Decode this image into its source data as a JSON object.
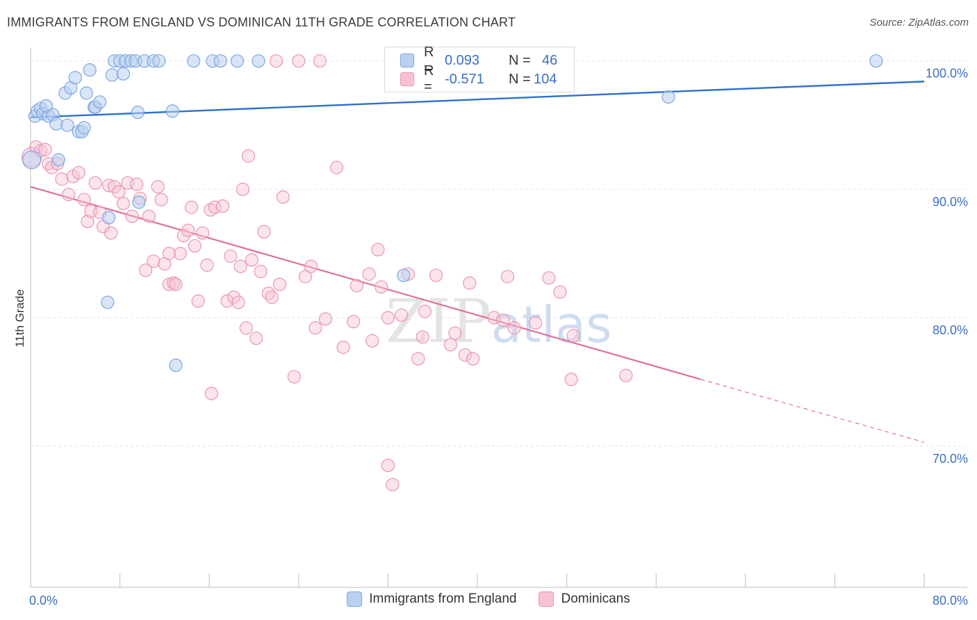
{
  "title": "IMMIGRANTS FROM ENGLAND VS DOMINICAN 11TH GRADE CORRELATION CHART",
  "source": "Source: ZipAtlas.com",
  "watermark": "ZIPatlas",
  "legend": {
    "rows": [
      {
        "r_label": "R =",
        "r_value": "0.093",
        "n_label": "N =",
        "n_value": "46"
      },
      {
        "r_label": "R =",
        "r_value": "-0.571",
        "n_label": "N =",
        "n_value": "104"
      }
    ]
  },
  "colors": {
    "england": "#7aa7e0",
    "england_fill": "#b9d0f0",
    "england_line": "#2e6fcc",
    "dominican": "#e896b2",
    "dominican_fill": "#f7c3d4",
    "dominican_line": "#e0709a",
    "axis_label": "#3a6fc4"
  },
  "chart_data": {
    "type": "scatter",
    "title": "IMMIGRANTS FROM ENGLAND VS DOMINICAN 11TH GRADE CORRELATION CHART",
    "ylabel": "11th Grade",
    "xlabel": "",
    "xlim": [
      0,
      80
    ],
    "ylim": [
      59,
      101.5
    ],
    "x_tick_labels": [
      "0.0%",
      "80.0%"
    ],
    "y_ticks": [
      100,
      90,
      80,
      70
    ],
    "y_tick_labels": [
      "100.0%",
      "90.0%",
      "80.0%",
      "70.0%"
    ],
    "grid": true,
    "legend_position": "bottom",
    "series": [
      {
        "name": "Immigrants from England",
        "trend": {
          "x0": 0,
          "y0": 95.6,
          "x1": 80,
          "y1": 98.4
        },
        "points": [
          [
            0.1,
            92.3
          ],
          [
            0.4,
            95.7
          ],
          [
            0.6,
            96.1
          ],
          [
            0.9,
            96.3
          ],
          [
            1.1,
            95.9
          ],
          [
            1.6,
            95.7
          ],
          [
            1.4,
            96.5
          ],
          [
            2.0,
            95.8
          ],
          [
            2.3,
            95.1
          ],
          [
            3.3,
            95.0
          ],
          [
            3.1,
            97.5
          ],
          [
            3.6,
            97.9
          ],
          [
            4.0,
            98.7
          ],
          [
            4.3,
            94.5
          ],
          [
            4.6,
            94.5
          ],
          [
            4.8,
            94.8
          ],
          [
            5.0,
            97.5
          ],
          [
            5.3,
            99.3
          ],
          [
            5.7,
            96.4
          ],
          [
            5.8,
            96.4
          ],
          [
            6.2,
            96.8
          ],
          [
            7.3,
            98.9
          ],
          [
            7.5,
            100
          ],
          [
            8.0,
            100
          ],
          [
            8.3,
            99.0
          ],
          [
            8.5,
            100
          ],
          [
            9.0,
            100
          ],
          [
            9.4,
            100
          ],
          [
            9.6,
            96.0
          ],
          [
            10.2,
            100
          ],
          [
            11.0,
            100
          ],
          [
            11.5,
            100
          ],
          [
            12.7,
            96.1
          ],
          [
            14.6,
            100
          ],
          [
            16.3,
            100
          ],
          [
            17.0,
            100
          ],
          [
            18.5,
            100
          ],
          [
            20.4,
            100
          ],
          [
            2.5,
            92.3
          ],
          [
            6.9,
            81.2
          ],
          [
            9.7,
            89.0
          ],
          [
            13.0,
            76.3
          ],
          [
            33.4,
            83.3
          ],
          [
            57.1,
            97.2
          ],
          [
            75.7,
            100
          ],
          [
            7.0,
            87.8
          ]
        ]
      },
      {
        "name": "Dominicans",
        "trend": {
          "x0": 0,
          "y0": 90.2,
          "x1": 60,
          "y1": 75.2
        },
        "trend_dashed": {
          "x0": 60,
          "y0": 75.2,
          "x1": 80,
          "y1": 70.3
        },
        "points": [
          [
            0.1,
            92.5
          ],
          [
            0.5,
            93.3
          ],
          [
            0.9,
            93.0
          ],
          [
            1.3,
            93.1
          ],
          [
            1.6,
            92.0
          ],
          [
            1.9,
            91.7
          ],
          [
            2.4,
            92.0
          ],
          [
            2.8,
            90.8
          ],
          [
            3.4,
            89.6
          ],
          [
            3.8,
            91.0
          ],
          [
            4.3,
            91.3
          ],
          [
            4.8,
            89.2
          ],
          [
            5.1,
            87.5
          ],
          [
            5.4,
            88.3
          ],
          [
            5.8,
            90.5
          ],
          [
            6.2,
            88.2
          ],
          [
            6.5,
            87.1
          ],
          [
            7.0,
            90.3
          ],
          [
            7.2,
            86.6
          ],
          [
            7.5,
            90.2
          ],
          [
            7.9,
            89.8
          ],
          [
            8.3,
            88.9
          ],
          [
            8.7,
            90.5
          ],
          [
            9.1,
            87.9
          ],
          [
            9.5,
            90.4
          ],
          [
            9.8,
            89.3
          ],
          [
            10.3,
            83.7
          ],
          [
            10.6,
            87.9
          ],
          [
            11.0,
            84.4
          ],
          [
            11.4,
            90.2
          ],
          [
            11.7,
            89.2
          ],
          [
            12.0,
            84.2
          ],
          [
            12.4,
            82.6
          ],
          [
            12.8,
            82.7
          ],
          [
            13.0,
            82.6
          ],
          [
            13.4,
            85.0
          ],
          [
            13.7,
            86.4
          ],
          [
            14.1,
            86.8
          ],
          [
            14.4,
            88.6
          ],
          [
            14.7,
            85.6
          ],
          [
            15.0,
            81.3
          ],
          [
            15.4,
            86.6
          ],
          [
            15.8,
            84.1
          ],
          [
            16.1,
            88.4
          ],
          [
            16.5,
            88.6
          ],
          [
            16.2,
            74.1
          ],
          [
            17.2,
            88.7
          ],
          [
            17.6,
            81.3
          ],
          [
            17.9,
            84.8
          ],
          [
            18.2,
            81.6
          ],
          [
            18.6,
            81.2
          ],
          [
            19.0,
            90.0
          ],
          [
            19.3,
            79.2
          ],
          [
            19.5,
            92.6
          ],
          [
            19.8,
            84.5
          ],
          [
            20.2,
            78.4
          ],
          [
            20.6,
            83.6
          ],
          [
            20.9,
            86.7
          ],
          [
            21.3,
            81.9
          ],
          [
            21.6,
            81.6
          ],
          [
            22.0,
            100
          ],
          [
            22.3,
            82.6
          ],
          [
            22.6,
            89.4
          ],
          [
            23.6,
            75.4
          ],
          [
            24.0,
            100
          ],
          [
            24.6,
            83.2
          ],
          [
            25.1,
            84.0
          ],
          [
            25.5,
            79.2
          ],
          [
            25.9,
            100
          ],
          [
            26.4,
            79.9
          ],
          [
            27.4,
            91.7
          ],
          [
            28.0,
            77.7
          ],
          [
            28.9,
            79.7
          ],
          [
            29.2,
            82.5
          ],
          [
            30.3,
            83.4
          ],
          [
            30.6,
            78.2
          ],
          [
            31.1,
            85.3
          ],
          [
            31.4,
            82.4
          ],
          [
            32.0,
            68.5
          ],
          [
            32.4,
            67.0
          ],
          [
            33.2,
            80.2
          ],
          [
            33.8,
            83.4
          ],
          [
            34.7,
            76.8
          ],
          [
            35.1,
            78.5
          ],
          [
            35.3,
            80.5
          ],
          [
            36.3,
            83.3
          ],
          [
            37.6,
            77.9
          ],
          [
            38.0,
            78.8
          ],
          [
            38.9,
            77.1
          ],
          [
            39.3,
            82.7
          ],
          [
            39.6,
            76.8
          ],
          [
            41.5,
            80.0
          ],
          [
            42.3,
            79.8
          ],
          [
            42.7,
            83.2
          ],
          [
            43.3,
            79.2
          ],
          [
            45.2,
            79.6
          ],
          [
            46.4,
            83.1
          ],
          [
            47.4,
            82.0
          ],
          [
            48.6,
            78.6
          ],
          [
            48.4,
            75.2
          ],
          [
            53.3,
            75.5
          ],
          [
            32.0,
            80.0
          ],
          [
            12.4,
            85.0
          ],
          [
            18.8,
            84.0
          ]
        ]
      }
    ]
  },
  "bottom_legend": [
    {
      "label": "Immigrants from England"
    },
    {
      "label": "Dominicans"
    }
  ]
}
